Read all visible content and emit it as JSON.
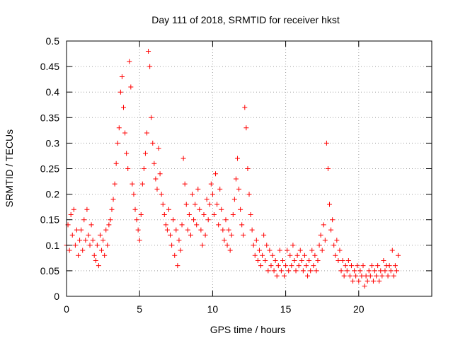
{
  "chart_data": {
    "type": "scatter",
    "title": "Day 111 of 2018, SRMTID for receiver hkst",
    "xlabel": "GPS time / hours",
    "ylabel": "SRMTID / TECUs",
    "xlim": [
      0,
      25
    ],
    "ylim": [
      0,
      0.5
    ],
    "x_ticks": [
      0,
      5,
      10,
      15,
      20
    ],
    "y_ticks": [
      0,
      0.05,
      0.1,
      0.15,
      0.2,
      0.25,
      0.3,
      0.35,
      0.4,
      0.45,
      0.5
    ],
    "x_tick_labels": [
      "0",
      "5",
      "10",
      "15",
      "20"
    ],
    "y_tick_labels": [
      "0",
      "0.05",
      "0.1",
      "0.15",
      "0.2",
      "0.25",
      "0.3",
      "0.35",
      "0.4",
      "0.45",
      "0.5"
    ],
    "grid": true,
    "legend": "none",
    "marker": "+",
    "color": "#ff0000",
    "series": [
      {
        "points": [
          [
            0.0,
            0.1
          ],
          [
            0.1,
            0.14
          ],
          [
            0.2,
            0.09
          ],
          [
            0.3,
            0.16
          ],
          [
            0.4,
            0.12
          ],
          [
            0.5,
            0.17
          ],
          [
            0.6,
            0.1
          ],
          [
            0.7,
            0.13
          ],
          [
            0.8,
            0.08
          ],
          [
            0.9,
            0.11
          ],
          [
            1.0,
            0.13
          ],
          [
            1.1,
            0.09
          ],
          [
            1.2,
            0.15
          ],
          [
            1.3,
            0.11
          ],
          [
            1.4,
            0.17
          ],
          [
            1.5,
            0.12
          ],
          [
            1.6,
            0.1
          ],
          [
            1.7,
            0.14
          ],
          [
            1.8,
            0.11
          ],
          [
            1.9,
            0.08
          ],
          [
            2.0,
            0.07
          ],
          [
            2.1,
            0.1
          ],
          [
            2.2,
            0.06
          ],
          [
            2.3,
            0.12
          ],
          [
            2.4,
            0.09
          ],
          [
            2.5,
            0.11
          ],
          [
            2.6,
            0.08
          ],
          [
            2.7,
            0.13
          ],
          [
            2.8,
            0.1
          ],
          [
            2.9,
            0.14
          ],
          [
            3.0,
            0.15
          ],
          [
            3.1,
            0.17
          ],
          [
            3.2,
            0.19
          ],
          [
            3.3,
            0.22
          ],
          [
            3.4,
            0.26
          ],
          [
            3.5,
            0.3
          ],
          [
            3.6,
            0.33
          ],
          [
            3.7,
            0.4
          ],
          [
            3.8,
            0.43
          ],
          [
            3.9,
            0.37
          ],
          [
            4.0,
            0.32
          ],
          [
            4.1,
            0.28
          ],
          [
            4.2,
            0.25
          ],
          [
            4.3,
            0.46
          ],
          [
            4.4,
            0.41
          ],
          [
            4.5,
            0.22
          ],
          [
            4.6,
            0.2
          ],
          [
            4.7,
            0.17
          ],
          [
            4.8,
            0.15
          ],
          [
            4.9,
            0.13
          ],
          [
            5.0,
            0.11
          ],
          [
            5.1,
            0.16
          ],
          [
            5.2,
            0.22
          ],
          [
            5.3,
            0.25
          ],
          [
            5.4,
            0.28
          ],
          [
            5.5,
            0.32
          ],
          [
            5.6,
            0.48
          ],
          [
            5.7,
            0.45
          ],
          [
            5.8,
            0.35
          ],
          [
            5.9,
            0.3
          ],
          [
            6.0,
            0.26
          ],
          [
            6.1,
            0.23
          ],
          [
            6.2,
            0.21
          ],
          [
            6.3,
            0.29
          ],
          [
            6.4,
            0.24
          ],
          [
            6.5,
            0.2
          ],
          [
            6.6,
            0.18
          ],
          [
            6.7,
            0.16
          ],
          [
            6.8,
            0.14
          ],
          [
            6.9,
            0.13
          ],
          [
            7.0,
            0.17
          ],
          [
            7.1,
            0.12
          ],
          [
            7.2,
            0.1
          ],
          [
            7.3,
            0.15
          ],
          [
            7.4,
            0.08
          ],
          [
            7.5,
            0.13
          ],
          [
            7.6,
            0.06
          ],
          [
            7.7,
            0.11
          ],
          [
            7.8,
            0.09
          ],
          [
            7.9,
            0.14
          ],
          [
            8.0,
            0.27
          ],
          [
            8.1,
            0.22
          ],
          [
            8.2,
            0.18
          ],
          [
            8.3,
            0.13
          ],
          [
            8.4,
            0.16
          ],
          [
            8.5,
            0.12
          ],
          [
            8.6,
            0.2
          ],
          [
            8.7,
            0.15
          ],
          [
            8.8,
            0.18
          ],
          [
            8.9,
            0.14
          ],
          [
            9.0,
            0.21
          ],
          [
            9.1,
            0.17
          ],
          [
            9.2,
            0.13
          ],
          [
            9.3,
            0.1
          ],
          [
            9.4,
            0.16
          ],
          [
            9.5,
            0.12
          ],
          [
            9.6,
            0.19
          ],
          [
            9.7,
            0.15
          ],
          [
            9.8,
            0.18
          ],
          [
            9.9,
            0.22
          ],
          [
            10.0,
            0.2
          ],
          [
            10.1,
            0.16
          ],
          [
            10.2,
            0.24
          ],
          [
            10.3,
            0.18
          ],
          [
            10.4,
            0.14
          ],
          [
            10.5,
            0.21
          ],
          [
            10.6,
            0.17
          ],
          [
            10.7,
            0.13
          ],
          [
            10.8,
            0.11
          ],
          [
            10.9,
            0.15
          ],
          [
            11.0,
            0.1
          ],
          [
            11.1,
            0.13
          ],
          [
            11.2,
            0.09
          ],
          [
            11.3,
            0.12
          ],
          [
            11.4,
            0.16
          ],
          [
            11.5,
            0.19
          ],
          [
            11.6,
            0.23
          ],
          [
            11.7,
            0.27
          ],
          [
            11.8,
            0.21
          ],
          [
            11.9,
            0.17
          ],
          [
            12.0,
            0.14
          ],
          [
            12.1,
            0.12
          ],
          [
            12.2,
            0.37
          ],
          [
            12.3,
            0.33
          ],
          [
            12.4,
            0.25
          ],
          [
            12.5,
            0.2
          ],
          [
            12.6,
            0.16
          ],
          [
            12.7,
            0.13
          ],
          [
            12.8,
            0.1
          ],
          [
            12.9,
            0.08
          ],
          [
            13.0,
            0.11
          ],
          [
            13.1,
            0.07
          ],
          [
            13.2,
            0.09
          ],
          [
            13.3,
            0.06
          ],
          [
            13.4,
            0.08
          ],
          [
            13.5,
            0.12
          ],
          [
            13.6,
            0.07
          ],
          [
            13.7,
            0.1
          ],
          [
            13.8,
            0.05
          ],
          [
            13.9,
            0.09
          ],
          [
            14.0,
            0.06
          ],
          [
            14.1,
            0.08
          ],
          [
            14.2,
            0.05
          ],
          [
            14.3,
            0.07
          ],
          [
            14.4,
            0.04
          ],
          [
            14.5,
            0.06
          ],
          [
            14.6,
            0.09
          ],
          [
            14.7,
            0.05
          ],
          [
            14.8,
            0.07
          ],
          [
            14.9,
            0.04
          ],
          [
            15.0,
            0.06
          ],
          [
            15.1,
            0.09
          ],
          [
            15.2,
            0.05
          ],
          [
            15.3,
            0.08
          ],
          [
            15.4,
            0.06
          ],
          [
            15.5,
            0.1
          ],
          [
            15.6,
            0.07
          ],
          [
            15.7,
            0.05
          ],
          [
            15.8,
            0.08
          ],
          [
            15.9,
            0.06
          ],
          [
            16.0,
            0.09
          ],
          [
            16.1,
            0.07
          ],
          [
            16.2,
            0.05
          ],
          [
            16.3,
            0.08
          ],
          [
            16.4,
            0.06
          ],
          [
            16.5,
            0.04
          ],
          [
            16.6,
            0.07
          ],
          [
            16.7,
            0.05
          ],
          [
            16.8,
            0.09
          ],
          [
            16.9,
            0.06
          ],
          [
            17.0,
            0.08
          ],
          [
            17.1,
            0.05
          ],
          [
            17.2,
            0.07
          ],
          [
            17.3,
            0.1
          ],
          [
            17.4,
            0.12
          ],
          [
            17.5,
            0.09
          ],
          [
            17.6,
            0.14
          ],
          [
            17.7,
            0.11
          ],
          [
            17.8,
            0.3
          ],
          [
            17.9,
            0.25
          ],
          [
            18.0,
            0.18
          ],
          [
            18.1,
            0.13
          ],
          [
            18.2,
            0.15
          ],
          [
            18.3,
            0.1
          ],
          [
            18.4,
            0.08
          ],
          [
            18.5,
            0.11
          ],
          [
            18.6,
            0.07
          ],
          [
            18.7,
            0.09
          ],
          [
            18.8,
            0.05
          ],
          [
            18.9,
            0.07
          ],
          [
            19.0,
            0.04
          ],
          [
            19.1,
            0.06
          ],
          [
            19.2,
            0.05
          ],
          [
            19.3,
            0.07
          ],
          [
            19.4,
            0.04
          ],
          [
            19.5,
            0.06
          ],
          [
            19.6,
            0.03
          ],
          [
            19.7,
            0.05
          ],
          [
            19.8,
            0.04
          ],
          [
            19.9,
            0.06
          ],
          [
            20.0,
            0.03
          ],
          [
            20.1,
            0.05
          ],
          [
            20.2,
            0.04
          ],
          [
            20.3,
            0.06
          ],
          [
            20.4,
            0.02
          ],
          [
            20.5,
            0.04
          ],
          [
            20.6,
            0.03
          ],
          [
            20.7,
            0.05
          ],
          [
            20.8,
            0.04
          ],
          [
            20.9,
            0.06
          ],
          [
            21.0,
            0.03
          ],
          [
            21.1,
            0.05
          ],
          [
            21.2,
            0.04
          ],
          [
            21.3,
            0.06
          ],
          [
            21.4,
            0.03
          ],
          [
            21.5,
            0.05
          ],
          [
            21.6,
            0.04
          ],
          [
            21.7,
            0.07
          ],
          [
            21.8,
            0.05
          ],
          [
            21.9,
            0.06
          ],
          [
            22.0,
            0.04
          ],
          [
            22.1,
            0.06
          ],
          [
            22.2,
            0.05
          ],
          [
            22.3,
            0.09
          ],
          [
            22.4,
            0.04
          ],
          [
            22.5,
            0.06
          ],
          [
            22.6,
            0.05
          ],
          [
            22.7,
            0.08
          ]
        ]
      }
    ]
  }
}
